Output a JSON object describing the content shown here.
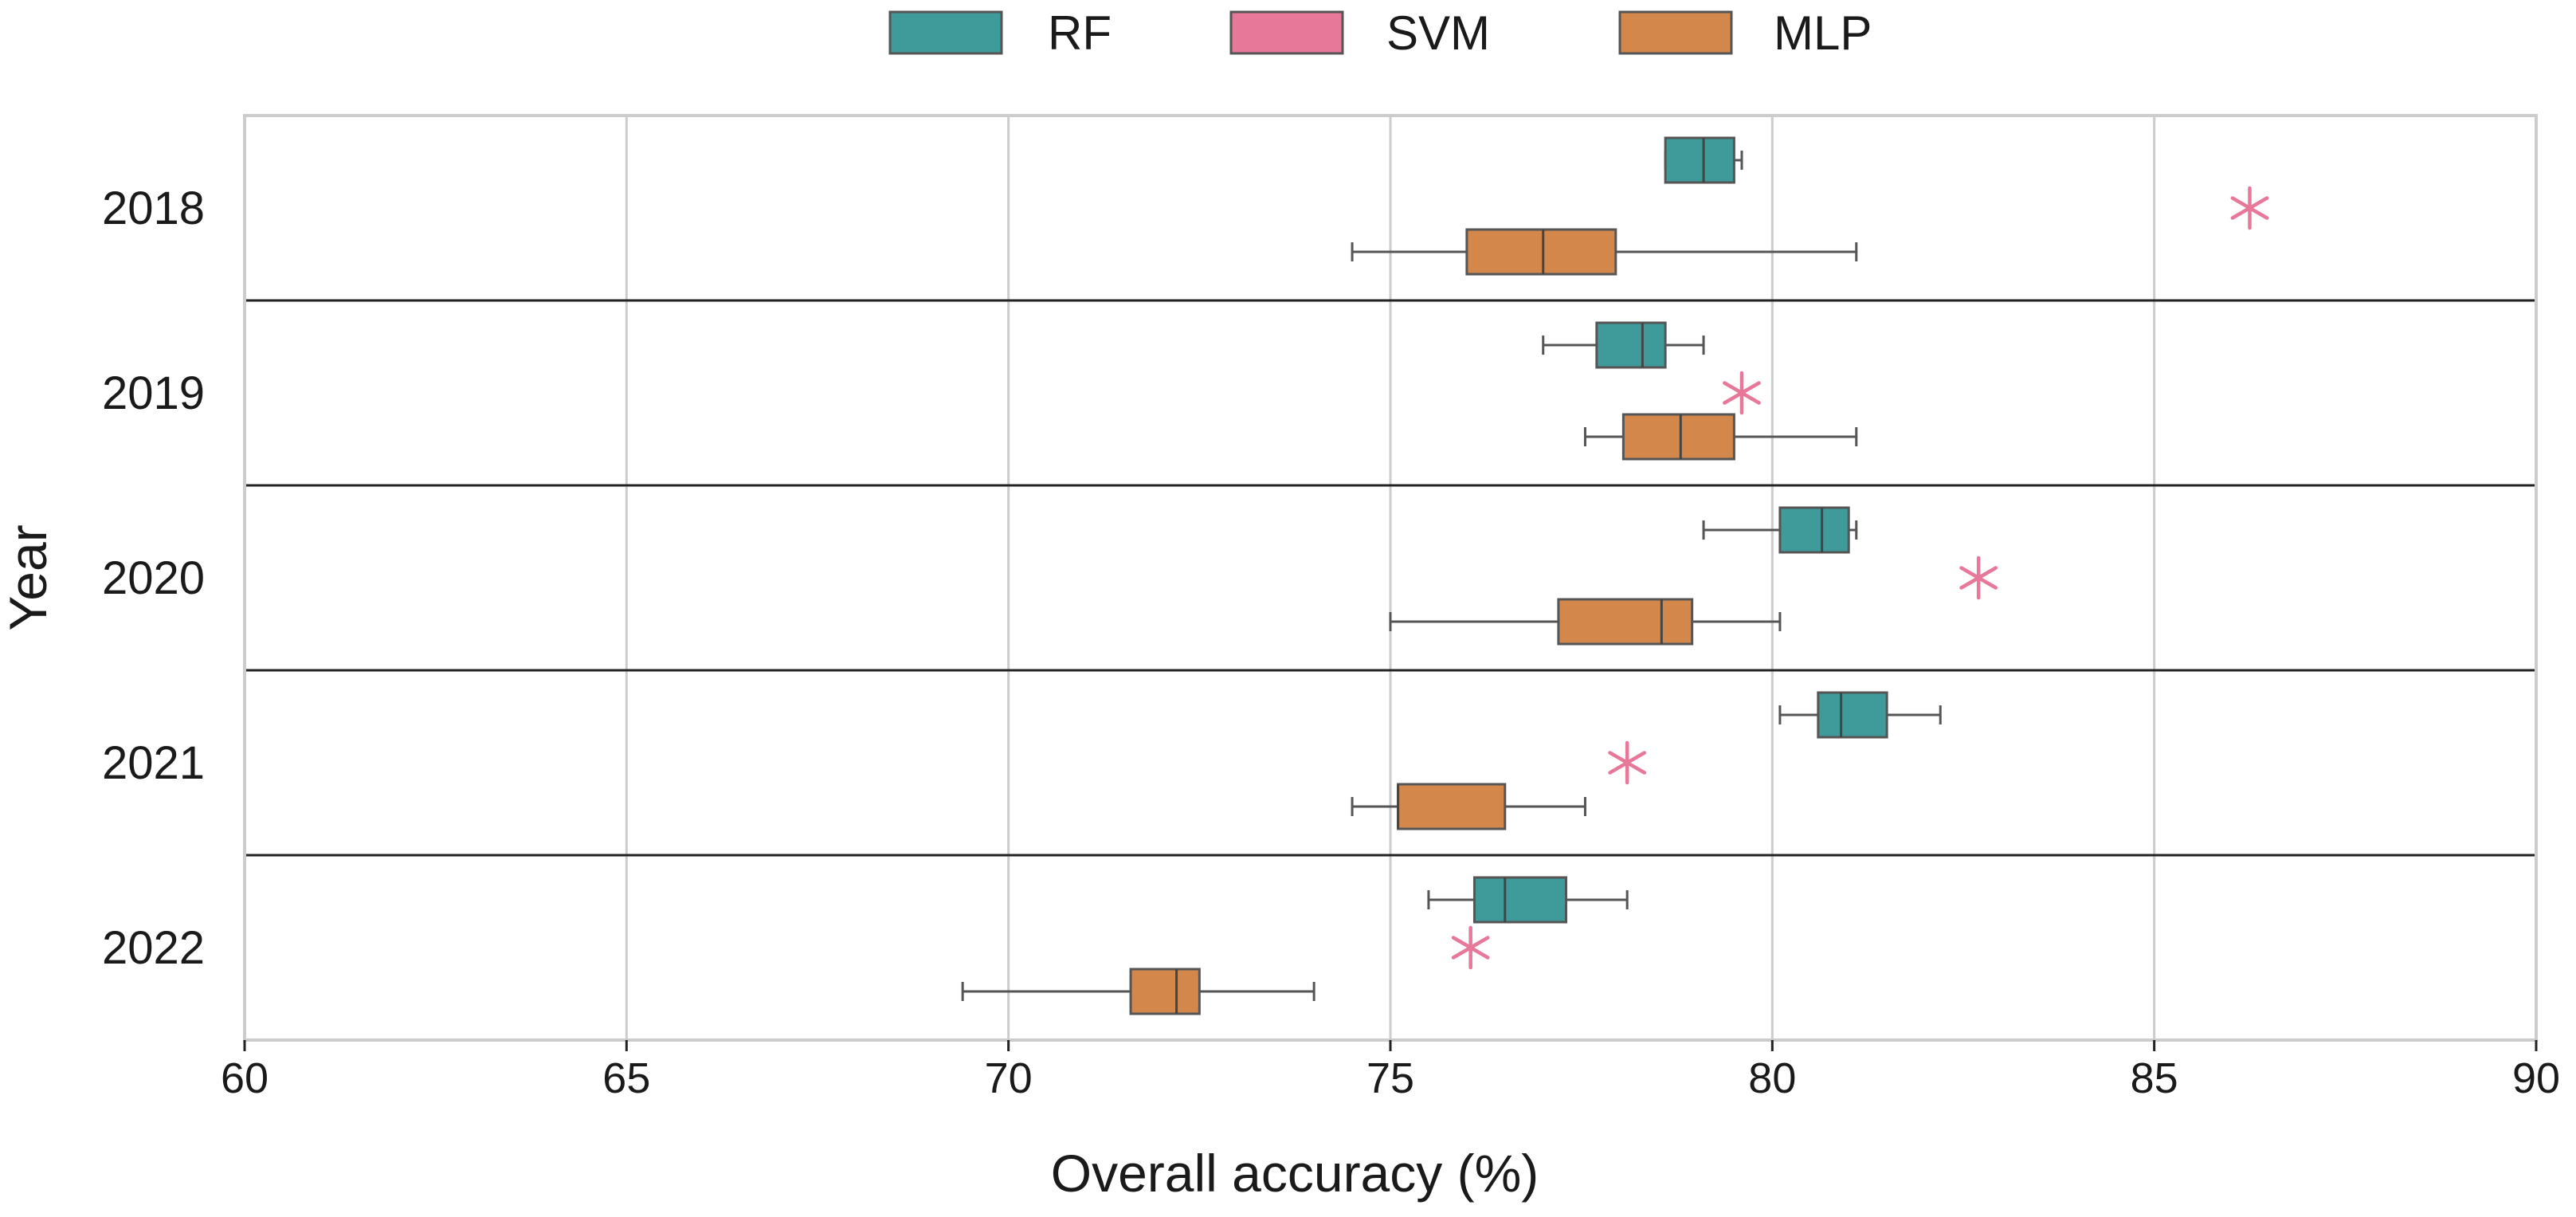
{
  "chart_data": {
    "type": "boxplot",
    "orientation": "horizontal",
    "title": "",
    "xlabel": "Overall accuracy (%)",
    "ylabel": "Year",
    "xlim": [
      60,
      90
    ],
    "xticks": [
      60,
      65,
      70,
      75,
      80,
      85,
      90
    ],
    "xtick_labels": [
      "60",
      "65",
      "70",
      "75",
      "80",
      "85",
      "90"
    ],
    "categories": [
      "2018",
      "2019",
      "2020",
      "2021",
      "2022"
    ],
    "grid": "vertical",
    "legend": {
      "placement": "top-center",
      "entries": [
        "RF",
        "SVM",
        "MLP"
      ]
    },
    "colors": {
      "RF": "#3f9a9a",
      "SVM": "#e8789a",
      "MLP": "#d4874a",
      "grid": "#cccccc",
      "separator": "#222222",
      "whisker": "#555555"
    },
    "series": [
      {
        "name": "RF",
        "kind": "box",
        "boxes": [
          {
            "category": "2018",
            "min": 78.6,
            "q1": 78.6,
            "median": 79.1,
            "q3": 79.5,
            "max": 79.6
          },
          {
            "category": "2019",
            "min": 77.0,
            "q1": 77.7,
            "median": 78.3,
            "q3": 78.6,
            "max": 79.1
          },
          {
            "category": "2020",
            "min": 79.1,
            "q1": 80.1,
            "median": 80.65,
            "q3": 81.0,
            "max": 81.1
          },
          {
            "category": "2021",
            "min": 80.1,
            "q1": 80.6,
            "median": 80.9,
            "q3": 81.5,
            "max": 82.2
          },
          {
            "category": "2022",
            "min": 75.5,
            "q1": 76.1,
            "median": 76.5,
            "q3": 77.3,
            "max": 78.1
          }
        ]
      },
      {
        "name": "SVM",
        "kind": "marker",
        "points": [
          {
            "category": "2018",
            "value": 86.25
          },
          {
            "category": "2019",
            "value": 79.6
          },
          {
            "category": "2020",
            "value": 82.7
          },
          {
            "category": "2021",
            "value": 78.1
          },
          {
            "category": "2022",
            "value": 76.05
          }
        ]
      },
      {
        "name": "MLP",
        "kind": "box",
        "boxes": [
          {
            "category": "2018",
            "min": 74.5,
            "q1": 76.0,
            "median": 77.0,
            "q3": 77.95,
            "max": 81.1
          },
          {
            "category": "2019",
            "min": 77.55,
            "q1": 78.05,
            "median": 78.8,
            "q3": 79.5,
            "max": 81.1
          },
          {
            "category": "2020",
            "min": 75.0,
            "q1": 77.2,
            "median": 78.55,
            "q3": 78.95,
            "max": 80.1
          },
          {
            "category": "2021",
            "min": 74.5,
            "q1": 75.1,
            "median": 75.1,
            "q3": 76.5,
            "max": 77.55
          },
          {
            "category": "2022",
            "min": 69.4,
            "q1": 71.6,
            "median": 72.2,
            "q3": 72.5,
            "max": 74.0
          }
        ]
      }
    ]
  }
}
